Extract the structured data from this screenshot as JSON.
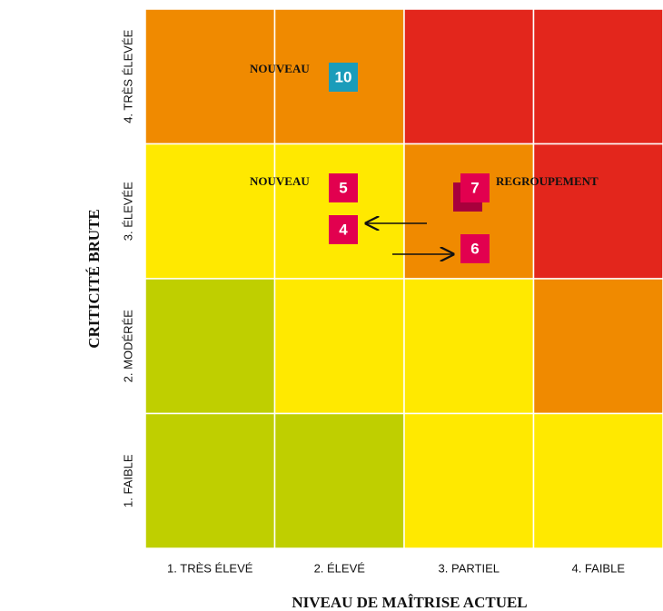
{
  "matrix": {
    "y_axis": {
      "title": "CRITICITÉ BRUTE",
      "labels": [
        "4. TRÈS ÉLEVÉE",
        "3. ÉLEVÉE",
        "2. MODÉRÉE",
        "1. FAIBLE"
      ]
    },
    "x_axis": {
      "title": "NIVEAU DE MAÎTRISE ACTUEL",
      "labels": [
        "1. TRÈS ÉLEVÉ",
        "2. ÉLEVÉ",
        "3. PARTIEL",
        "4. FAIBLE"
      ]
    },
    "cell_colors": [
      [
        "#f08a00",
        "#f08a00",
        "#e3261c",
        "#e3261c"
      ],
      [
        "#ffe900",
        "#ffe900",
        "#f08a00",
        "#e3261c"
      ],
      [
        "#bfcf00",
        "#ffe900",
        "#ffe900",
        "#f08a00"
      ],
      [
        "#bfcf00",
        "#bfcf00",
        "#ffe900",
        "#ffe900"
      ]
    ],
    "markers": [
      "10",
      "5",
      "4",
      "7",
      "6"
    ],
    "annotations": [
      "NOUVEAU",
      "NOUVEAU",
      "REGROUPEMENT"
    ]
  }
}
